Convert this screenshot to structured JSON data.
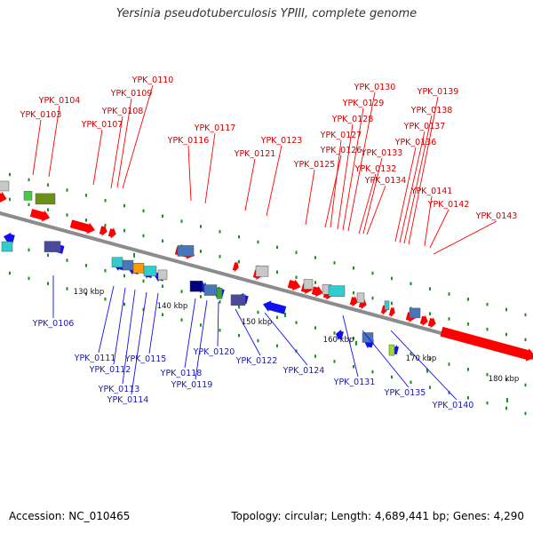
{
  "title": "Yersinia pseudotuberculosis YPIII, complete genome",
  "footer": {
    "accession": "Accession: NC_010465",
    "summary": "Topology: circular; Length: 4,689,441 bp; Genes: 4,290"
  },
  "colors": {
    "forward_gene": "#ff0000",
    "forward_label": "#cc0000",
    "reverse_gene": "#1010ee",
    "reverse_label": "#1a1aaa",
    "backbone": "#8c8c8c",
    "tick": "#1f8c1f"
  },
  "scale": [
    "130 kbp",
    "140 kbp",
    "150 kbp",
    "160 kbp",
    "170 kbp",
    "180 kbp"
  ],
  "forward_labels": [
    "YPK_0103",
    "YPK_0104",
    "YPK_0107",
    "YPK_0108",
    "YPK_0109",
    "YPK_0110",
    "YPK_0116",
    "YPK_0117",
    "YPK_0121",
    "YPK_0123",
    "YPK_0125",
    "YPK_0126",
    "YPK_0127",
    "YPK_0128",
    "YPK_0129",
    "YPK_0130",
    "YPK_0132",
    "YPK_0133",
    "YPK_0134",
    "YPK_0136",
    "YPK_0137",
    "YPK_0138",
    "YPK_0139",
    "YPK_0141",
    "YPK_0142",
    "YPK_0143"
  ],
  "reverse_labels": [
    "YPK_0106",
    "YPK_0111",
    "YPK_0112",
    "YPK_0113",
    "YPK_0114",
    "YPK_0115",
    "YPK_0118",
    "YPK_0119",
    "YPK_0120",
    "YPK_0122",
    "YPK_0124",
    "YPK_0131",
    "YPK_0135",
    "YPK_0140"
  ]
}
